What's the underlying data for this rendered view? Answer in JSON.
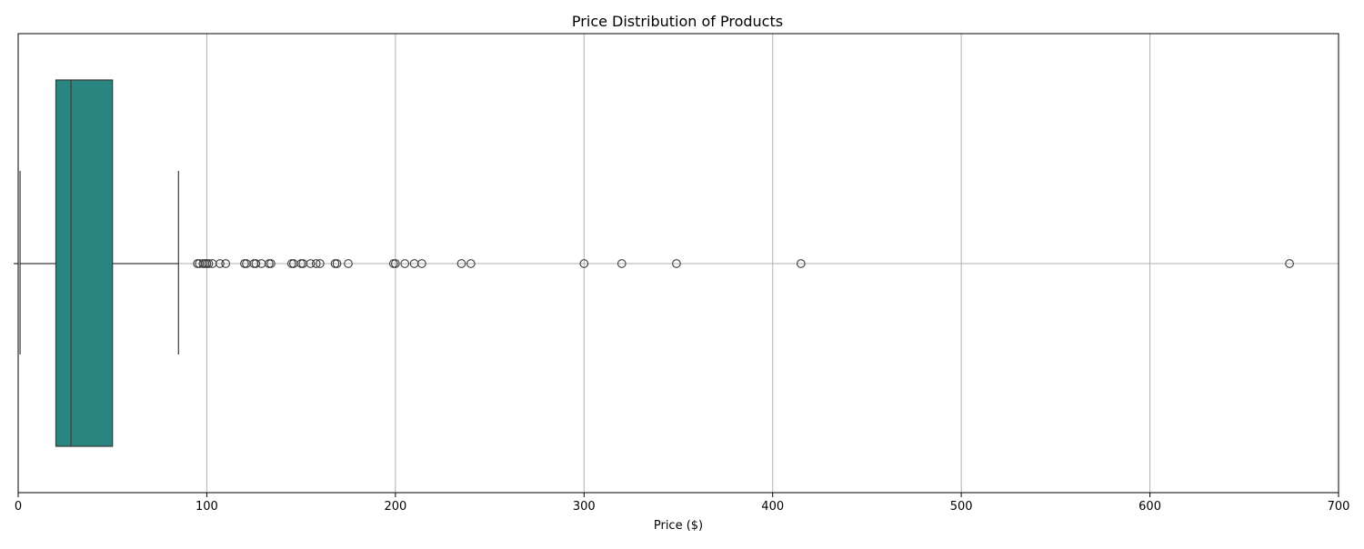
{
  "chart_data": {
    "type": "boxplot",
    "title": "Price Distribution of Products",
    "xlabel": "Price ($)",
    "ylabel": "",
    "xlim": [
      0,
      700
    ],
    "xticks": [
      0,
      100,
      200,
      300,
      400,
      500,
      600,
      700
    ],
    "xtick_labels": [
      "0",
      "100",
      "200",
      "300",
      "400",
      "500",
      "600",
      "700"
    ],
    "grid": true,
    "box": {
      "min": 1,
      "q1": 20,
      "median": 28,
      "q3": 50,
      "max": 85,
      "color": "#2a8580",
      "edge_color": "#3a3a3a"
    },
    "outliers": [
      95,
      96,
      98,
      99,
      100,
      101,
      103,
      107,
      110,
      120,
      121,
      125,
      126,
      129,
      133,
      134,
      145,
      146,
      150,
      151,
      155,
      158,
      160,
      168,
      169,
      175,
      199,
      200,
      205,
      210,
      214,
      235,
      240,
      300,
      320,
      349,
      415,
      674
    ]
  }
}
